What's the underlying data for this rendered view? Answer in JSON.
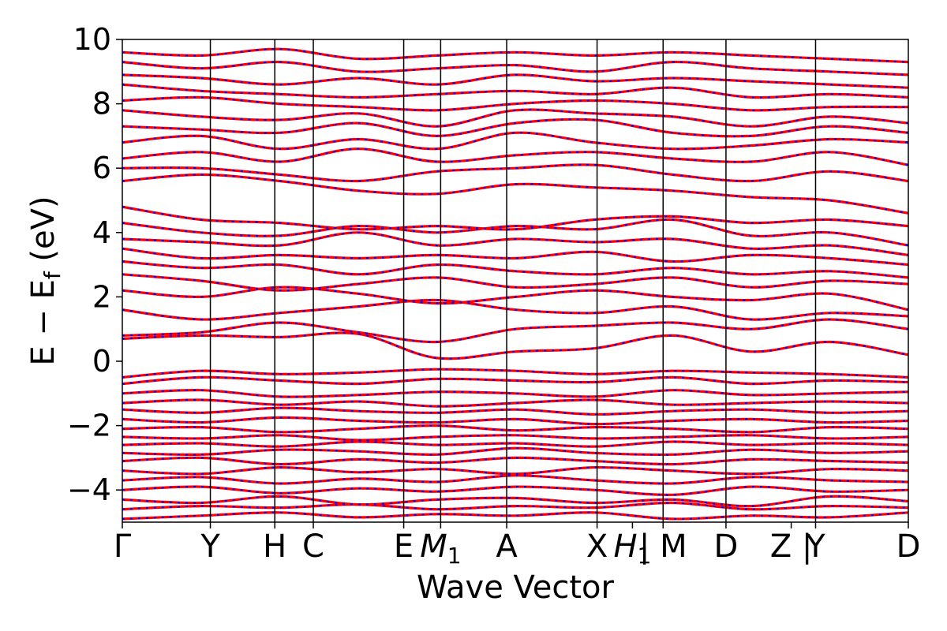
{
  "chart_data": {
    "type": "line",
    "title": "",
    "xlabel": "Wave Vector",
    "ylabel": "E − E",
    "ylabel_sub": "f",
    "ylabel_unit": " (eV)",
    "ylim": [
      -5,
      10
    ],
    "yticks": [
      -4,
      -2,
      0,
      2,
      4,
      6,
      8,
      10
    ],
    "xlim": [
      0,
      1
    ],
    "grid": false,
    "legend": "none",
    "kpoints": [
      {
        "label": "Γ",
        "x": 0.0
      },
      {
        "label": "Y",
        "x": 0.112
      },
      {
        "label": "H",
        "x": 0.194
      },
      {
        "label": "C",
        "x": 0.243
      },
      {
        "label": "E",
        "x": 0.358
      },
      {
        "label": "M",
        "sub": "1",
        "x": 0.405
      },
      {
        "label": "A",
        "x": 0.489
      },
      {
        "label": "X",
        "x": 0.604
      },
      {
        "label": "H",
        "sub": "1",
        "x": 0.649
      },
      {
        "label": "| M",
        "x": 0.688
      },
      {
        "label": "D",
        "x": 0.768
      },
      {
        "label": "Z |",
        "x": 0.851
      },
      {
        "label": "Y",
        "x": 0.882
      },
      {
        "label": "D",
        "x": 1.0
      }
    ],
    "vlines": [
      0.112,
      0.194,
      0.243,
      0.358,
      0.405,
      0.489,
      0.604,
      0.688,
      0.768,
      0.882
    ],
    "series_colors": {
      "band_a": "#ff0000",
      "band_b": "#0000ff"
    },
    "series": [
      {
        "y": [
          -4.9,
          -4.8,
          -4.7,
          -4.85,
          -4.75,
          -4.8,
          -4.7,
          -4.9,
          -4.8,
          -4.85,
          -4.7
        ]
      },
      {
        "y": [
          -4.6,
          -4.5,
          -4.55,
          -4.45,
          -4.6,
          -4.5,
          -4.55,
          -4.4,
          -4.6,
          -4.5,
          -4.55
        ]
      },
      {
        "y": [
          -4.3,
          -4.4,
          -4.2,
          -4.45,
          -4.3,
          -4.25,
          -4.4,
          -4.3,
          -4.5,
          -4.2,
          -4.35
        ]
      },
      {
        "y": [
          -4.0,
          -3.9,
          -4.1,
          -3.95,
          -4.05,
          -3.9,
          -4.0,
          -4.15,
          -3.9,
          -4.05,
          -4.0
        ]
      },
      {
        "y": [
          -3.7,
          -3.6,
          -3.8,
          -3.65,
          -3.75,
          -3.55,
          -3.7,
          -3.8,
          -3.6,
          -3.7,
          -3.75
        ]
      },
      {
        "y": [
          -3.4,
          -3.5,
          -3.3,
          -3.45,
          -3.35,
          -3.5,
          -3.3,
          -3.4,
          -3.5,
          -3.35,
          -3.4
        ]
      },
      {
        "y": [
          -3.1,
          -3.0,
          -3.2,
          -3.05,
          -3.15,
          -3.0,
          -3.1,
          -3.2,
          -3.05,
          -3.1,
          -3.15
        ]
      },
      {
        "y": [
          -2.85,
          -2.9,
          -2.75,
          -2.8,
          -2.9,
          -2.7,
          -2.85,
          -2.9,
          -2.75,
          -2.85,
          -2.8
        ]
      },
      {
        "y": [
          -2.6,
          -2.55,
          -2.65,
          -2.5,
          -2.6,
          -2.55,
          -2.65,
          -2.5,
          -2.6,
          -2.55,
          -2.6
        ]
      },
      {
        "y": [
          -2.35,
          -2.4,
          -2.3,
          -2.45,
          -2.35,
          -2.3,
          -2.4,
          -2.35,
          -2.3,
          -2.4,
          -2.35
        ]
      },
      {
        "y": [
          -2.1,
          -2.05,
          -2.2,
          -2.1,
          -2.0,
          -2.15,
          -2.05,
          -2.1,
          -2.2,
          -2.05,
          -2.1
        ]
      },
      {
        "y": [
          -1.8,
          -1.9,
          -1.75,
          -1.85,
          -1.9,
          -1.8,
          -1.95,
          -1.85,
          -1.8,
          -1.9,
          -1.85
        ]
      },
      {
        "y": [
          -1.5,
          -1.6,
          -1.45,
          -1.55,
          -1.6,
          -1.5,
          -1.65,
          -1.55,
          -1.5,
          -1.6,
          -1.55
        ]
      },
      {
        "y": [
          -1.3,
          -1.2,
          -1.35,
          -1.25,
          -1.4,
          -1.3,
          -1.2,
          -1.35,
          -1.3,
          -1.25,
          -1.3
        ]
      },
      {
        "y": [
          -1.0,
          -0.9,
          -1.1,
          -1.05,
          -0.95,
          -1.0,
          -1.1,
          -0.9,
          -1.05,
          -1.0,
          -0.95
        ]
      },
      {
        "y": [
          -0.7,
          -0.5,
          -0.6,
          -0.7,
          -0.55,
          -0.6,
          -0.65,
          -0.5,
          -0.7,
          -0.6,
          -0.65
        ]
      },
      {
        "y": [
          -0.5,
          -0.3,
          -0.4,
          -0.35,
          -0.25,
          -0.3,
          -0.4,
          -0.3,
          -0.35,
          -0.4,
          -0.5
        ]
      },
      {
        "y": [
          0.7,
          0.8,
          0.75,
          0.85,
          0.1,
          0.3,
          0.4,
          0.8,
          0.3,
          0.6,
          0.2
        ]
      },
      {
        "y": [
          0.8,
          0.9,
          1.2,
          0.9,
          0.6,
          1.0,
          1.1,
          1.2,
          1.0,
          1.3,
          1.0
        ]
      },
      {
        "y": [
          1.6,
          1.3,
          1.5,
          1.7,
          1.9,
          1.6,
          1.5,
          1.7,
          1.3,
          1.5,
          1.4
        ]
      },
      {
        "y": [
          2.2,
          2.0,
          2.3,
          2.1,
          1.8,
          2.0,
          2.2,
          2.0,
          1.9,
          2.1,
          1.6
        ]
      },
      {
        "y": [
          2.7,
          2.5,
          2.2,
          2.4,
          2.6,
          2.3,
          2.4,
          2.6,
          2.3,
          2.5,
          2.4
        ]
      },
      {
        "y": [
          3.1,
          2.9,
          3.0,
          2.7,
          3.0,
          2.8,
          2.7,
          2.9,
          2.7,
          2.8,
          2.6
        ]
      },
      {
        "y": [
          3.5,
          3.2,
          3.3,
          3.2,
          3.3,
          3.2,
          3.4,
          3.1,
          3.3,
          3.2,
          3.0
        ]
      },
      {
        "y": [
          3.8,
          3.7,
          3.6,
          4.0,
          3.6,
          3.8,
          3.7,
          3.8,
          3.5,
          3.6,
          3.3
        ]
      },
      {
        "y": [
          4.3,
          4.0,
          3.9,
          4.2,
          4.0,
          4.2,
          4.1,
          4.4,
          3.9,
          4.0,
          3.6
        ]
      },
      {
        "y": [
          4.8,
          4.4,
          4.3,
          4.1,
          4.2,
          4.1,
          4.4,
          4.5,
          4.3,
          4.4,
          4.2
        ]
      },
      {
        "y": [
          5.6,
          5.8,
          5.6,
          5.3,
          5.2,
          5.5,
          5.4,
          5.3,
          5.1,
          5.0,
          4.6
        ]
      },
      {
        "y": [
          6.0,
          6.0,
          5.8,
          5.6,
          5.9,
          6.0,
          6.1,
          5.8,
          5.6,
          5.9,
          5.6
        ]
      },
      {
        "y": [
          6.3,
          6.5,
          6.2,
          6.6,
          6.2,
          6.4,
          6.5,
          6.3,
          6.2,
          6.5,
          6.1
        ]
      },
      {
        "y": [
          6.8,
          7.0,
          6.6,
          6.9,
          6.6,
          7.1,
          6.8,
          6.6,
          6.7,
          6.9,
          6.8
        ]
      },
      {
        "y": [
          7.3,
          7.2,
          7.1,
          7.4,
          7.0,
          7.4,
          7.5,
          7.1,
          7.0,
          7.3,
          7.1
        ]
      },
      {
        "y": [
          7.8,
          7.6,
          7.5,
          7.7,
          7.3,
          7.8,
          7.7,
          7.6,
          7.3,
          7.6,
          7.4
        ]
      },
      {
        "y": [
          8.1,
          8.2,
          8.0,
          7.9,
          7.8,
          8.0,
          8.1,
          8.0,
          7.8,
          7.9,
          7.9
        ]
      },
      {
        "y": [
          8.6,
          8.4,
          8.3,
          8.2,
          8.3,
          8.4,
          8.3,
          8.5,
          8.2,
          8.3,
          8.2
        ]
      },
      {
        "y": [
          8.9,
          8.8,
          8.6,
          8.8,
          8.6,
          8.9,
          8.7,
          8.8,
          8.7,
          8.6,
          8.5
        ]
      },
      {
        "y": [
          9.3,
          9.1,
          9.3,
          9.0,
          9.1,
          9.2,
          9.0,
          9.3,
          9.1,
          9.0,
          8.9
        ]
      },
      {
        "y": [
          9.6,
          9.5,
          9.7,
          9.4,
          9.5,
          9.6,
          9.5,
          9.6,
          9.5,
          9.4,
          9.3
        ]
      }
    ]
  }
}
